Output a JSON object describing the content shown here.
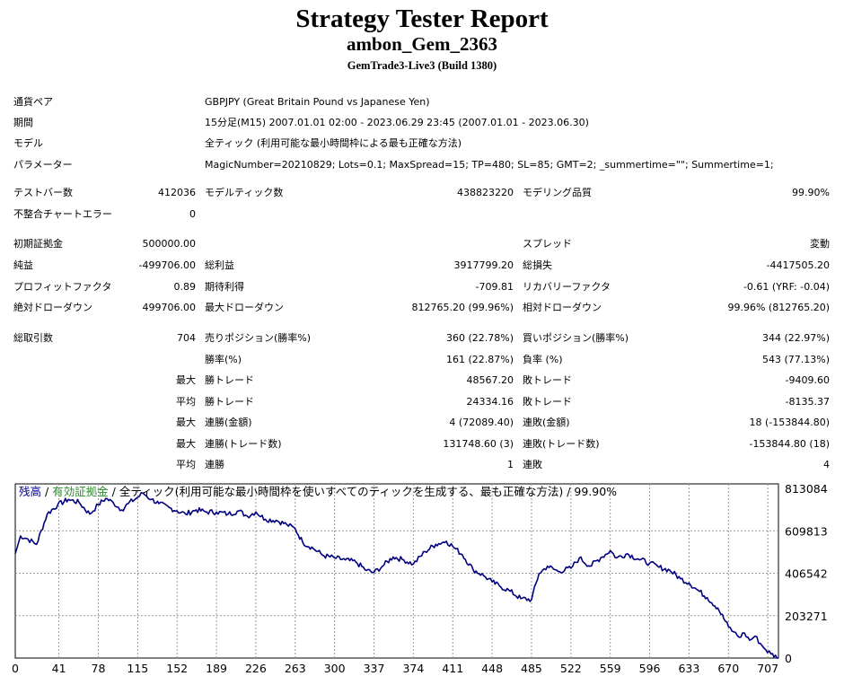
{
  "report": {
    "title": "Strategy Tester Report",
    "ea_name": "ambon_Gem_2363",
    "server": "GemTrade3-Live3 (Build 1380)"
  },
  "settings": [
    {
      "label": "通貨ペア",
      "value": "GBPJPY (Great Britain Pound vs Japanese Yen)"
    },
    {
      "label": "期間",
      "value": "15分足(M15) 2007.01.01 02:00 - 2023.06.29 23:45 (2007.01.01 - 2023.06.30)"
    },
    {
      "label": "モデル",
      "value": "全ティック (利用可能な最小時間枠による最も正確な方法)"
    },
    {
      "label": "パラメーター",
      "value": "MagicNumber=20210829; Lots=0.1; MaxSpread=15; TP=480; SL=85; GMT=2; _summertime=\"\"; Summertime=1;"
    }
  ],
  "bars": {
    "bars_label": "テストバー数",
    "bars": "412036",
    "ticks_label": "モデルティック数",
    "ticks": "438823220",
    "quality_label": "モデリング品質",
    "quality": "99.90%",
    "mismatch_label": "不整合チャートエラー",
    "mismatch": "0"
  },
  "capital": {
    "initial_label": "初期証拠金",
    "initial": "500000.00",
    "spread_label": "スプレッド",
    "spread": "変動"
  },
  "results": {
    "net_label": "純益",
    "net": "-499706.00",
    "gross_profit_label": "総利益",
    "gross_profit": "3917799.20",
    "gross_loss_label": "総損失",
    "gross_loss": "-4417505.20",
    "pf_label": "プロフィットファクタ",
    "pf": "0.89",
    "expected_label": "期待利得",
    "expected": "-709.81",
    "recovery_label": "リカバリーファクタ",
    "recovery": "-0.61 (YRF: -0.04)",
    "abs_dd_label": "絶対ドローダウン",
    "abs_dd": "499706.00",
    "max_dd_label": "最大ドローダウン",
    "max_dd": "812765.20 (99.96%)",
    "rel_dd_label": "相対ドローダウン",
    "rel_dd": "99.96% (812765.20)"
  },
  "trades": {
    "total_label": "総取引数",
    "total": "704",
    "short_label": "売りポジション(勝率%)",
    "short": "360 (22.78%)",
    "long_label": "買いポジション(勝率%)",
    "long": "344 (22.97%)",
    "win_pct_label": "勝率(%)",
    "win_pct": "161 (22.87%)",
    "loss_pct_label": "負率 (%)",
    "loss_pct": "543 (77.13%)",
    "max_word": "最大",
    "avg_word": "平均",
    "win_trade_label": "勝トレード",
    "loss_trade_label": "敗トレード",
    "largest_win": "48567.20",
    "largest_loss": "-9409.60",
    "avg_win": "24334.16",
    "avg_loss": "-8135.37",
    "consec_wins_money_label": "連勝(金額)",
    "consec_wins_money": "4 (72089.40)",
    "consec_losses_money_label": "連敗(金額)",
    "consec_losses_money": "18 (-153844.80)",
    "consec_wins_trades_label": "連勝(トレード数)",
    "consec_wins_trades": "131748.60 (3)",
    "consec_losses_trades_label": "連敗(トレード数)",
    "consec_losses_trades": "-153844.80 (18)",
    "avg_consec_wins_label": "連勝",
    "avg_consec_wins": "1",
    "avg_consec_losses_label": "連敗",
    "avg_consec_losses": "4"
  },
  "chart_data": {
    "type": "line",
    "title_parts": [
      "残高",
      " / ",
      "有効証拠金",
      " / 全ティック(利用可能な最小時間枠を使いすべてのティックを生成する、最も正確な方法) / 99.90%"
    ],
    "title_colors": [
      "#00008b",
      "#000000",
      "#2e8b2e",
      "#000000"
    ],
    "x_ticks": [
      "0",
      "41",
      "78",
      "115",
      "152",
      "189",
      "226",
      "263",
      "300",
      "337",
      "374",
      "411",
      "448",
      "485",
      "522",
      "559",
      "596",
      "633",
      "670",
      "707"
    ],
    "y_ticks": [
      "813084",
      "609813",
      "406542",
      "203271",
      "0"
    ],
    "xlim": [
      0,
      717
    ],
    "ylim": [
      0,
      813084
    ],
    "grid": true,
    "line_color": "#000080",
    "series": [
      {
        "x": [
          0,
          5,
          12,
          20,
          30,
          40,
          50,
          60,
          70,
          78,
          85,
          92,
          100,
          106,
          115,
          120,
          128,
          135,
          145,
          152,
          160,
          170,
          180,
          189,
          200,
          210,
          218,
          226,
          235,
          245,
          255,
          263,
          270,
          280,
          290,
          300,
          310,
          320,
          330,
          337,
          345,
          355,
          365,
          374,
          385,
          395,
          405,
          411,
          420,
          430,
          440,
          448,
          455,
          465,
          475,
          485,
          492,
          500,
          510,
          522,
          530,
          540,
          550,
          559,
          565,
          575,
          585,
          596,
          605,
          615,
          625,
          633,
          640,
          650,
          660,
          670,
          675,
          680,
          685,
          690,
          695,
          700,
          705,
          710,
          717
        ],
        "y": [
          500000,
          585000,
          570000,
          545000,
          690000,
          735000,
          760000,
          745000,
          690000,
          735000,
          765000,
          745000,
          710000,
          740000,
          770000,
          790000,
          760000,
          740000,
          720000,
          705000,
          690000,
          710000,
          700000,
          700000,
          690000,
          705000,
          680000,
          700000,
          665000,
          660000,
          640000,
          620000,
          555000,
          525000,
          490000,
          480000,
          470000,
          460000,
          420000,
          410000,
          440000,
          485000,
          470000,
          450000,
          510000,
          545000,
          560000,
          535000,
          495000,
          425000,
          395000,
          365000,
          345000,
          320000,
          285000,
          280000,
          405000,
          440000,
          415000,
          430000,
          480000,
          440000,
          480000,
          515000,
          480000,
          500000,
          475000,
          455000,
          435000,
          420000,
          380000,
          360000,
          330000,
          290000,
          240000,
          150000,
          125000,
          100000,
          120000,
          85000,
          105000,
          70000,
          40000,
          20000,
          0
        ]
      }
    ]
  }
}
